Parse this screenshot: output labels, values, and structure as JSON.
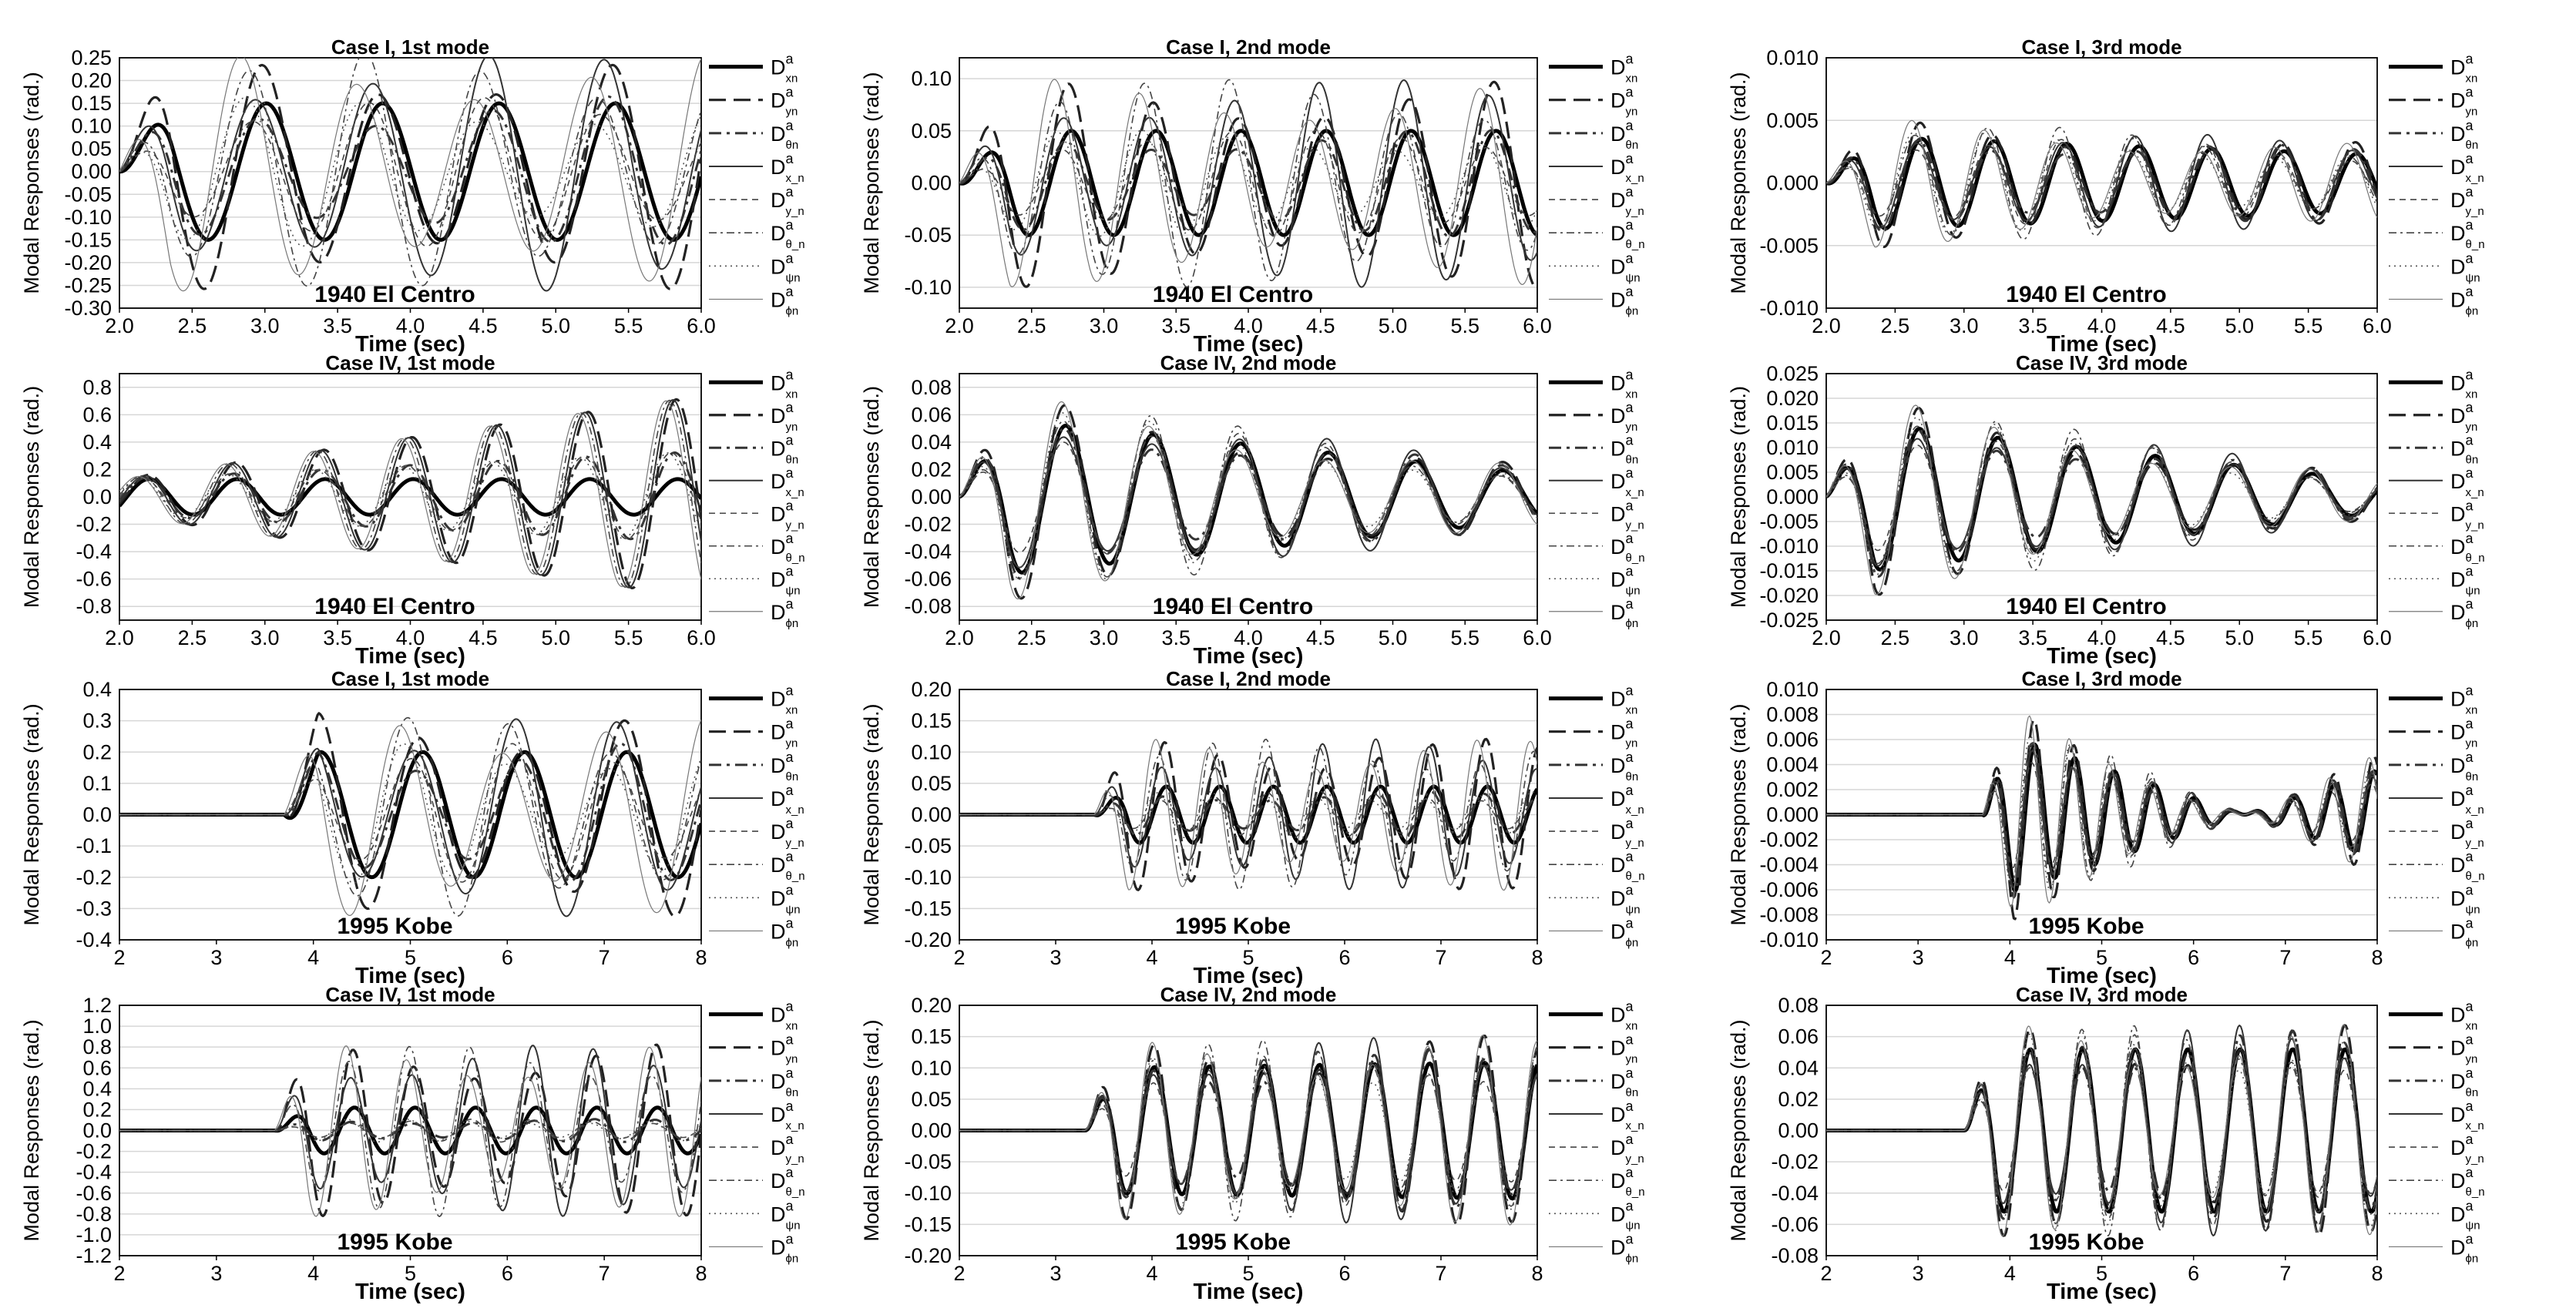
{
  "common": {
    "ylabel": "Modal Responses (rad.)",
    "xlabel": "Time (sec)"
  },
  "legend": [
    {
      "sub": "xn",
      "style": "thick-solid"
    },
    {
      "sub": "yn",
      "style": "dash"
    },
    {
      "sub": "θn",
      "style": "dash-dot"
    },
    {
      "sub": "x_n",
      "style": "thin-solid"
    },
    {
      "sub": "y_n",
      "style": "thin-dash"
    },
    {
      "sub": "θ_n",
      "style": "thin-dash-dot"
    },
    {
      "sub": "ψn",
      "style": "dot"
    },
    {
      "sub": "ϕn",
      "style": "hairline"
    }
  ],
  "legend_base": "D",
  "legend_sup": "a",
  "chart_data": [
    {
      "type": "line",
      "title": "Case I, 1st mode",
      "earthquake": "1940 El Centro",
      "xlabel": "Time (sec)",
      "ylabel": "Modal Responses (rad.)",
      "xlim": [
        2,
        6
      ],
      "xticks": [
        "2.0",
        "2.5",
        "3.0",
        "3.5",
        "4.0",
        "4.5",
        "5.0",
        "5.5",
        "6.0"
      ],
      "ylim": [
        -0.3,
        0.25
      ],
      "yticks": [
        "0.25",
        "0.20",
        "0.15",
        "0.10",
        "0.05",
        "0.00",
        "-0.05",
        "-0.10",
        "-0.15",
        "-0.20",
        "-0.25",
        "-0.30"
      ],
      "wave": {
        "A": 0.15,
        "f": 1.25,
        "ph": 0.6,
        "grow": 0.0,
        "start": 2.0,
        "spread": 0.55,
        "amp_spread": 0.8
      }
    },
    {
      "type": "line",
      "title": "Case I, 2nd mode",
      "earthquake": "1940 El Centro",
      "xlabel": "Time (sec)",
      "ylabel": "Modal Responses (rad.)",
      "xlim": [
        2,
        6
      ],
      "xticks": [
        "2.0",
        "2.5",
        "3.0",
        "3.5",
        "4.0",
        "4.5",
        "5.0",
        "5.5",
        "6.0"
      ],
      "ylim": [
        -0.12,
        0.12
      ],
      "yticks": [
        "0.10",
        "0.05",
        "0.00",
        "-0.05",
        "-0.10"
      ],
      "wave": {
        "A": 0.05,
        "f": 1.7,
        "ph": 0.2,
        "grow": 0.0,
        "start": 2.0,
        "spread": 0.5,
        "amp_spread": 1.2
      }
    },
    {
      "type": "line",
      "title": "Case I, 3rd mode",
      "earthquake": "1940 El Centro",
      "xlabel": "Time (sec)",
      "ylabel": "Modal Responses (rad.)",
      "xlim": [
        2,
        6
      ],
      "xticks": [
        "2.0",
        "2.5",
        "3.0",
        "3.5",
        "4.0",
        "4.5",
        "5.0",
        "5.5",
        "6.0"
      ],
      "ylim": [
        -0.01,
        0.01
      ],
      "yticks": [
        "0.010",
        "0.005",
        "0.000",
        "-0.005",
        "-0.010"
      ],
      "wave": {
        "A": 0.0038,
        "f": 1.9,
        "ph": 0.0,
        "grow": -0.1,
        "start": 2.0,
        "spread": 0.35,
        "amp_spread": 0.25
      }
    },
    {
      "type": "line",
      "title": "Case IV, 1st mode",
      "earthquake": "1940 El Centro",
      "xlabel": "Time (sec)",
      "ylabel": "Modal Responses (rad.)",
      "xlim": [
        2,
        6
      ],
      "xticks": [
        "2.0",
        "2.5",
        "3.0",
        "3.5",
        "4.0",
        "4.5",
        "5.0",
        "5.5",
        "6.0"
      ],
      "ylim": [
        -0.9,
        0.9
      ],
      "yticks": [
        "0.8",
        "0.6",
        "0.4",
        "0.2",
        "0.0",
        "-0.2",
        "-0.4",
        "-0.6",
        "-0.8"
      ],
      "wave": {
        "A": 0.13,
        "f": 1.65,
        "ph": -0.1,
        "grow": 0.0,
        "start": 2.0,
        "spread": 0.35,
        "amp_spread": 6.0,
        "beat": true
      }
    },
    {
      "type": "line",
      "title": "Case IV, 2nd mode",
      "earthquake": "1940 El Centro",
      "xlabel": "Time (sec)",
      "ylabel": "Modal Responses (rad.)",
      "xlim": [
        2,
        6
      ],
      "xticks": [
        "2.0",
        "2.5",
        "3.0",
        "3.5",
        "4.0",
        "4.5",
        "5.0",
        "5.5",
        "6.0"
      ],
      "ylim": [
        -0.09,
        0.09
      ],
      "yticks": [
        "0.08",
        "0.06",
        "0.04",
        "0.02",
        "0.00",
        "-0.02",
        "-0.04",
        "-0.06",
        "-0.08"
      ],
      "wave": {
        "A": 0.06,
        "f": 1.65,
        "ph": 0.35,
        "grow": -0.18,
        "start": 2.0,
        "spread": 0.12,
        "amp_spread": 0.15
      }
    },
    {
      "type": "line",
      "title": "Case IV, 3rd mode",
      "earthquake": "1940 El Centro",
      "xlabel": "Time (sec)",
      "ylabel": "Modal Responses (rad.)",
      "xlim": [
        2,
        6
      ],
      "xticks": [
        "2.0",
        "2.5",
        "3.0",
        "3.5",
        "4.0",
        "4.5",
        "5.0",
        "5.5",
        "6.0"
      ],
      "ylim": [
        -0.025,
        0.025
      ],
      "yticks": [
        "0.025",
        "0.020",
        "0.015",
        "0.010",
        "0.005",
        "0.000",
        "-0.005",
        "-0.010",
        "-0.015",
        "-0.020",
        "-0.025"
      ],
      "wave": {
        "A": 0.016,
        "f": 1.75,
        "ph": 0.55,
        "grow": -0.2,
        "start": 2.0,
        "spread": 0.12,
        "amp_spread": 0.15
      }
    },
    {
      "type": "line",
      "title": "Case I, 1st mode",
      "earthquake": "1995 Kobe",
      "xlabel": "Time (sec)",
      "ylabel": "Modal Responses (rad.)",
      "xlim": [
        2,
        8
      ],
      "xticks": [
        "2",
        "3",
        "4",
        "5",
        "6",
        "7",
        "8"
      ],
      "ylim": [
        -0.4,
        0.4
      ],
      "yticks": [
        "0.4",
        "0.3",
        "0.2",
        "0.1",
        "0.0",
        "-0.1",
        "-0.2",
        "-0.3",
        "-0.4"
      ],
      "wave": {
        "A": 0.2,
        "f": 0.95,
        "ph": 0.0,
        "grow": 0.0,
        "start": 3.7,
        "spread": 0.55,
        "amp_spread": 0.6
      }
    },
    {
      "type": "line",
      "title": "Case I, 2nd mode",
      "earthquake": "1995 Kobe",
      "xlabel": "Time (sec)",
      "ylabel": "Modal Responses (rad.)",
      "xlim": [
        2,
        8
      ],
      "xticks": [
        "2",
        "3",
        "4",
        "5",
        "6",
        "7",
        "8"
      ],
      "ylim": [
        -0.2,
        0.2
      ],
      "yticks": [
        "0.20",
        "0.15",
        "0.10",
        "0.05",
        "0.00",
        "-0.05",
        "-0.10",
        "-0.15",
        "-0.20"
      ],
      "wave": {
        "A": 0.045,
        "f": 1.8,
        "ph": 0.0,
        "grow": 0.0,
        "start": 3.4,
        "spread": 0.5,
        "amp_spread": 2.3
      }
    },
    {
      "type": "line",
      "title": "Case I, 3rd mode",
      "earthquake": "1995 Kobe",
      "xlabel": "Time (sec)",
      "ylabel": "Modal Responses (rad.)",
      "xlim": [
        2,
        8
      ],
      "xticks": [
        "2",
        "3",
        "4",
        "5",
        "6",
        "7",
        "8"
      ],
      "ylim": [
        -0.01,
        0.01
      ],
      "yticks": [
        "0.010",
        "0.008",
        "0.006",
        "0.004",
        "0.002",
        "0.000",
        "-0.002",
        "-0.004",
        "-0.006",
        "-0.008",
        "-0.010"
      ],
      "wave": {
        "A": 0.007,
        "f": 2.3,
        "ph": 0.0,
        "grow": -0.35,
        "start": 3.7,
        "spread": 0.35,
        "amp_spread": 0.2
      }
    },
    {
      "type": "line",
      "title": "Case IV, 1st mode",
      "earthquake": "1995 Kobe",
      "xlabel": "Time (sec)",
      "ylabel": "Modal Responses (rad.)",
      "xlim": [
        2,
        8
      ],
      "xticks": [
        "2",
        "3",
        "4",
        "5",
        "6",
        "7",
        "8"
      ],
      "ylim": [
        -1.2,
        1.2
      ],
      "yticks": [
        "1.2",
        "1.0",
        "0.8",
        "0.6",
        "0.4",
        "0.2",
        "0.0",
        "-0.2",
        "-0.4",
        "-0.6",
        "-0.8",
        "-1.0",
        "-1.2"
      ],
      "wave": {
        "A": 0.22,
        "f": 1.6,
        "ph": 0.0,
        "grow": 0.0,
        "start": 3.6,
        "spread": 0.35,
        "amp_spread": 4.0
      }
    },
    {
      "type": "line",
      "title": "Case IV, 2nd mode",
      "earthquake": "1995 Kobe",
      "xlabel": "Time (sec)",
      "ylabel": "Modal Responses (rad.)",
      "xlim": [
        2,
        8
      ],
      "xticks": [
        "2",
        "3",
        "4",
        "5",
        "6",
        "7",
        "8"
      ],
      "ylim": [
        -0.2,
        0.2
      ],
      "yticks": [
        "0.20",
        "0.15",
        "0.10",
        "0.05",
        "0.00",
        "-0.05",
        "-0.10",
        "-0.15",
        "-0.20"
      ],
      "wave": {
        "A": 0.1,
        "f": 1.75,
        "ph": 0.0,
        "grow": 0.02,
        "start": 3.3,
        "spread": 0.1,
        "amp_spread": 0.25
      }
    },
    {
      "type": "line",
      "title": "Case IV, 3rd mode",
      "earthquake": "1995 Kobe",
      "xlabel": "Time (sec)",
      "ylabel": "Modal Responses (rad.)",
      "xlim": [
        2,
        8
      ],
      "xticks": [
        "2",
        "3",
        "4",
        "5",
        "6",
        "7",
        "8"
      ],
      "ylim": [
        -0.08,
        0.08
      ],
      "yticks": [
        "0.08",
        "0.06",
        "0.04",
        "0.02",
        "0.00",
        "-0.02",
        "-0.04",
        "-0.06",
        "-0.08"
      ],
      "wave": {
        "A": 0.052,
        "f": 1.75,
        "ph": 0.0,
        "grow": 0.0,
        "start": 3.5,
        "spread": 0.08,
        "amp_spread": 0.08
      }
    }
  ]
}
